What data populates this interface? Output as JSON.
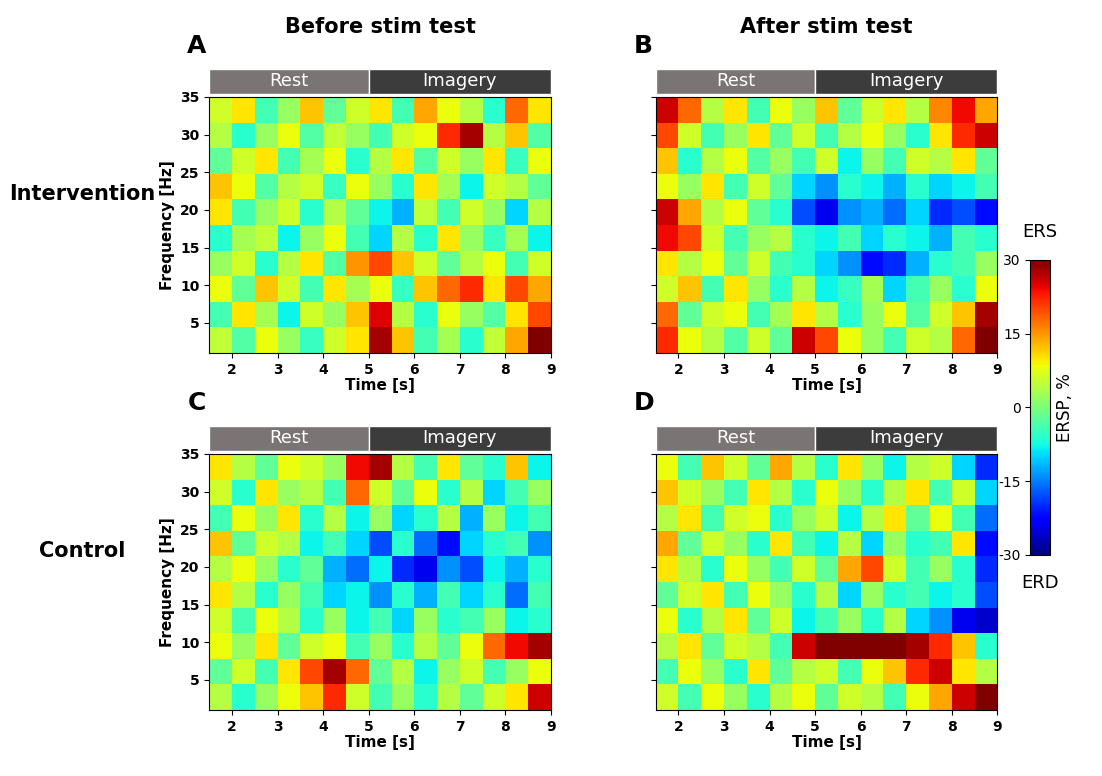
{
  "column_titles": [
    "Before stim test",
    "After stim test"
  ],
  "row_labels": [
    "Intervention",
    "Control"
  ],
  "colorbar": {
    "label": "ERSP, %",
    "range": [
      -30,
      30
    ],
    "ticks": [
      30,
      15,
      0,
      -15,
      -30
    ],
    "top_label": "ERS",
    "bottom_label": "ERD"
  },
  "chart_data": [
    {
      "type": "heatmap",
      "panel": "A",
      "xlabel": "Time [s]",
      "ylabel": "Frequency [Hz]",
      "xlim": [
        1.5,
        9
      ],
      "ylim": [
        1,
        35
      ],
      "xticks": [
        2,
        3,
        4,
        5,
        6,
        7,
        8,
        9
      ],
      "yticks": [
        5,
        10,
        15,
        20,
        25,
        30,
        35
      ],
      "phases": [
        {
          "label": "Rest",
          "start": 1.5,
          "end": 5
        },
        {
          "label": "Imagery",
          "start": 5,
          "end": 9
        }
      ],
      "time_edges": [
        1.5,
        2,
        2.5,
        3,
        3.5,
        4,
        4.5,
        5,
        5.5,
        6,
        6.5,
        7,
        7.5,
        8,
        8.5,
        9
      ],
      "freq_edges": [
        1,
        4.4,
        7.8,
        11.2,
        14.6,
        18,
        21.4,
        24.8,
        28.2,
        31.6,
        35
      ],
      "cells": [
        [
          5,
          -3,
          8,
          2,
          -5,
          6,
          10,
          28,
          12,
          -4,
          3,
          -6,
          5,
          14,
          30
        ],
        [
          -4,
          10,
          3,
          -8,
          6,
          2,
          12,
          25,
          4,
          -6,
          8,
          2,
          -3,
          10,
          20
        ],
        [
          8,
          -2,
          12,
          6,
          -4,
          10,
          3,
          8,
          -5,
          12,
          18,
          22,
          10,
          20,
          14
        ],
        [
          2,
          6,
          -6,
          4,
          10,
          -3,
          15,
          20,
          12,
          6,
          -2,
          4,
          8,
          -4,
          6
        ],
        [
          -6,
          3,
          5,
          -8,
          2,
          8,
          -4,
          -10,
          4,
          -6,
          10,
          2,
          -5,
          3,
          -8
        ],
        [
          10,
          -4,
          2,
          6,
          -6,
          4,
          -2,
          -8,
          -12,
          5,
          -4,
          6,
          2,
          -10,
          4
        ],
        [
          12,
          8,
          -3,
          4,
          6,
          -5,
          8,
          2,
          -6,
          10,
          3,
          -8,
          6,
          4,
          -2
        ],
        [
          -2,
          6,
          10,
          -4,
          3,
          8,
          -6,
          4,
          10,
          -3,
          6,
          2,
          10,
          -5,
          8
        ],
        [
          4,
          -6,
          2,
          8,
          -3,
          5,
          2,
          -4,
          6,
          8,
          22,
          28,
          4,
          12,
          -3
        ],
        [
          6,
          10,
          -4,
          2,
          12,
          -2,
          6,
          10,
          -4,
          14,
          8,
          4,
          -6,
          18,
          10
        ]
      ]
    },
    {
      "type": "heatmap",
      "panel": "B",
      "xlabel": "Time [s]",
      "xlim": [
        1.5,
        9
      ],
      "ylim": [
        1,
        35
      ],
      "xticks": [
        2,
        3,
        4,
        5,
        6,
        7,
        8,
        9
      ],
      "yticks": [
        5,
        10,
        15,
        20,
        25,
        30,
        35
      ],
      "tick_labels": "x",
      "phases": [
        {
          "label": "Rest",
          "start": 1.5,
          "end": 5
        },
        {
          "label": "Imagery",
          "start": 5,
          "end": 9
        }
      ],
      "time_edges": [
        1.5,
        2,
        2.5,
        3,
        3.5,
        4,
        4.5,
        5,
        5.5,
        6,
        6.5,
        7,
        7.5,
        8,
        8.5,
        9
      ],
      "freq_edges": [
        1,
        4.4,
        7.8,
        11.2,
        14.6,
        18,
        21.4,
        24.8,
        28.2,
        31.6,
        35
      ],
      "cells": [
        [
          22,
          8,
          4,
          -3,
          6,
          -2,
          26,
          20,
          8,
          2,
          -4,
          6,
          4,
          18,
          30
        ],
        [
          18,
          -2,
          6,
          8,
          -4,
          3,
          10,
          4,
          -6,
          2,
          8,
          -3,
          6,
          12,
          28
        ],
        [
          6,
          12,
          -4,
          10,
          2,
          -6,
          4,
          -8,
          -5,
          3,
          -10,
          -4,
          2,
          -6,
          8
        ],
        [
          10,
          4,
          8,
          -2,
          6,
          -4,
          -6,
          -10,
          -14,
          -22,
          -20,
          -12,
          -6,
          -4,
          2
        ],
        [
          24,
          20,
          6,
          -4,
          2,
          4,
          -6,
          -8,
          -4,
          -10,
          -6,
          -8,
          -12,
          -4,
          -6
        ],
        [
          26,
          14,
          4,
          8,
          -2,
          -6,
          -18,
          -24,
          -14,
          -12,
          -16,
          -10,
          -20,
          -18,
          -22
        ],
        [
          8,
          2,
          10,
          -4,
          6,
          -2,
          -10,
          -14,
          -6,
          -8,
          -12,
          -6,
          -10,
          -8,
          -4
        ],
        [
          12,
          -6,
          4,
          8,
          -3,
          2,
          -4,
          6,
          -8,
          2,
          -4,
          6,
          4,
          10,
          -2
        ],
        [
          20,
          6,
          -4,
          2,
          10,
          -2,
          6,
          -4,
          4,
          8,
          2,
          -6,
          10,
          22,
          26
        ],
        [
          26,
          18,
          4,
          10,
          -4,
          8,
          2,
          12,
          -2,
          6,
          10,
          4,
          16,
          24,
          14
        ]
      ]
    },
    {
      "type": "heatmap",
      "panel": "C",
      "xlabel": "Time [s]",
      "ylabel": "Frequency [Hz]",
      "xlim": [
        1.5,
        9
      ],
      "ylim": [
        1,
        35
      ],
      "xticks": [
        2,
        3,
        4,
        5,
        6,
        7,
        8,
        9
      ],
      "yticks": [
        5,
        10,
        15,
        20,
        25,
        30,
        35
      ],
      "phases": [
        {
          "label": "Rest",
          "start": 1.5,
          "end": 5
        },
        {
          "label": "Imagery",
          "start": 5,
          "end": 9
        }
      ],
      "time_edges": [
        1.5,
        2,
        2.5,
        3,
        3.5,
        4,
        4.5,
        5,
        5.5,
        6,
        6.5,
        7,
        7.5,
        8,
        8.5,
        9
      ],
      "freq_edges": [
        1,
        4.4,
        7.8,
        11.2,
        14.6,
        18,
        21.4,
        24.8,
        28.2,
        31.6,
        35
      ],
      "cells": [
        [
          4,
          -6,
          2,
          8,
          12,
          22,
          6,
          -4,
          2,
          -6,
          4,
          -2,
          6,
          10,
          26
        ],
        [
          -2,
          6,
          -4,
          10,
          20,
          28,
          18,
          -2,
          4,
          -8,
          2,
          6,
          -4,
          2,
          8
        ],
        [
          8,
          2,
          10,
          -2,
          6,
          8,
          -4,
          2,
          -6,
          4,
          -2,
          8,
          18,
          24,
          28
        ],
        [
          6,
          -4,
          8,
          4,
          -6,
          2,
          -8,
          -4,
          -10,
          2,
          -6,
          -4,
          2,
          -8,
          -6
        ],
        [
          10,
          4,
          -6,
          2,
          -4,
          -10,
          -8,
          -14,
          -6,
          -12,
          -4,
          -10,
          -6,
          -16,
          -4
        ],
        [
          4,
          8,
          2,
          -6,
          -2,
          -12,
          -16,
          -8,
          -20,
          -24,
          -14,
          -18,
          -8,
          -12,
          -6
        ],
        [
          12,
          -2,
          6,
          4,
          -8,
          -4,
          -10,
          -18,
          -6,
          -16,
          -22,
          -10,
          -6,
          -4,
          -14
        ],
        [
          -4,
          8,
          2,
          10,
          -6,
          4,
          -8,
          2,
          -10,
          -6,
          4,
          -12,
          2,
          -8,
          -4
        ],
        [
          6,
          -6,
          10,
          2,
          4,
          -4,
          18,
          6,
          -2,
          8,
          -6,
          4,
          -10,
          -4,
          2
        ],
        [
          10,
          4,
          -2,
          8,
          6,
          2,
          24,
          28,
          4,
          -4,
          10,
          -2,
          -6,
          12,
          -8
        ]
      ]
    },
    {
      "type": "heatmap",
      "panel": "D",
      "xlabel": "Time [s]",
      "xlim": [
        1.5,
        9
      ],
      "ylim": [
        1,
        35
      ],
      "xticks": [
        2,
        3,
        4,
        5,
        6,
        7,
        8,
        9
      ],
      "yticks": [
        5,
        10,
        15,
        20,
        25,
        30,
        35
      ],
      "tick_labels": "x",
      "phases": [
        {
          "label": "Rest",
          "start": 1.5,
          "end": 5
        },
        {
          "label": "Imagery",
          "start": 5,
          "end": 9
        }
      ],
      "time_edges": [
        1.5,
        2,
        2.5,
        3,
        3.5,
        4,
        4.5,
        5,
        5.5,
        6,
        6.5,
        7,
        7.5,
        8,
        8.5,
        9
      ],
      "freq_edges": [
        1,
        4.4,
        7.8,
        11.2,
        14.6,
        18,
        21.4,
        24.8,
        28.2,
        31.6,
        35
      ],
      "cells": [
        [
          6,
          -4,
          8,
          2,
          -6,
          4,
          8,
          -2,
          6,
          4,
          -4,
          8,
          14,
          26,
          30
        ],
        [
          -4,
          8,
          2,
          -6,
          10,
          -2,
          4,
          6,
          -4,
          8,
          12,
          22,
          26,
          10,
          4
        ],
        [
          4,
          10,
          -2,
          6,
          4,
          -4,
          26,
          30,
          30,
          30,
          30,
          28,
          22,
          12,
          -6
        ],
        [
          8,
          -6,
          4,
          10,
          -2,
          6,
          -8,
          -4,
          2,
          -6,
          4,
          -10,
          -14,
          -24,
          -26
        ],
        [
          -2,
          6,
          10,
          -4,
          8,
          2,
          -6,
          4,
          -10,
          2,
          -6,
          -4,
          -8,
          -6,
          -18
        ],
        [
          10,
          4,
          -6,
          8,
          2,
          -4,
          6,
          -2,
          14,
          20,
          6,
          -4,
          2,
          -6,
          -20
        ],
        [
          14,
          -2,
          6,
          2,
          -6,
          10,
          -4,
          -8,
          4,
          -10,
          2,
          -6,
          -4,
          10,
          -22
        ],
        [
          4,
          10,
          -4,
          6,
          8,
          -6,
          2,
          6,
          -8,
          4,
          10,
          -2,
          8,
          -4,
          -16
        ],
        [
          12,
          6,
          2,
          -4,
          10,
          4,
          -6,
          8,
          2,
          -6,
          4,
          10,
          -4,
          6,
          -10
        ],
        [
          8,
          -4,
          12,
          6,
          -2,
          14,
          4,
          -6,
          10,
          2,
          -8,
          4,
          6,
          -10,
          -20
        ]
      ]
    }
  ]
}
